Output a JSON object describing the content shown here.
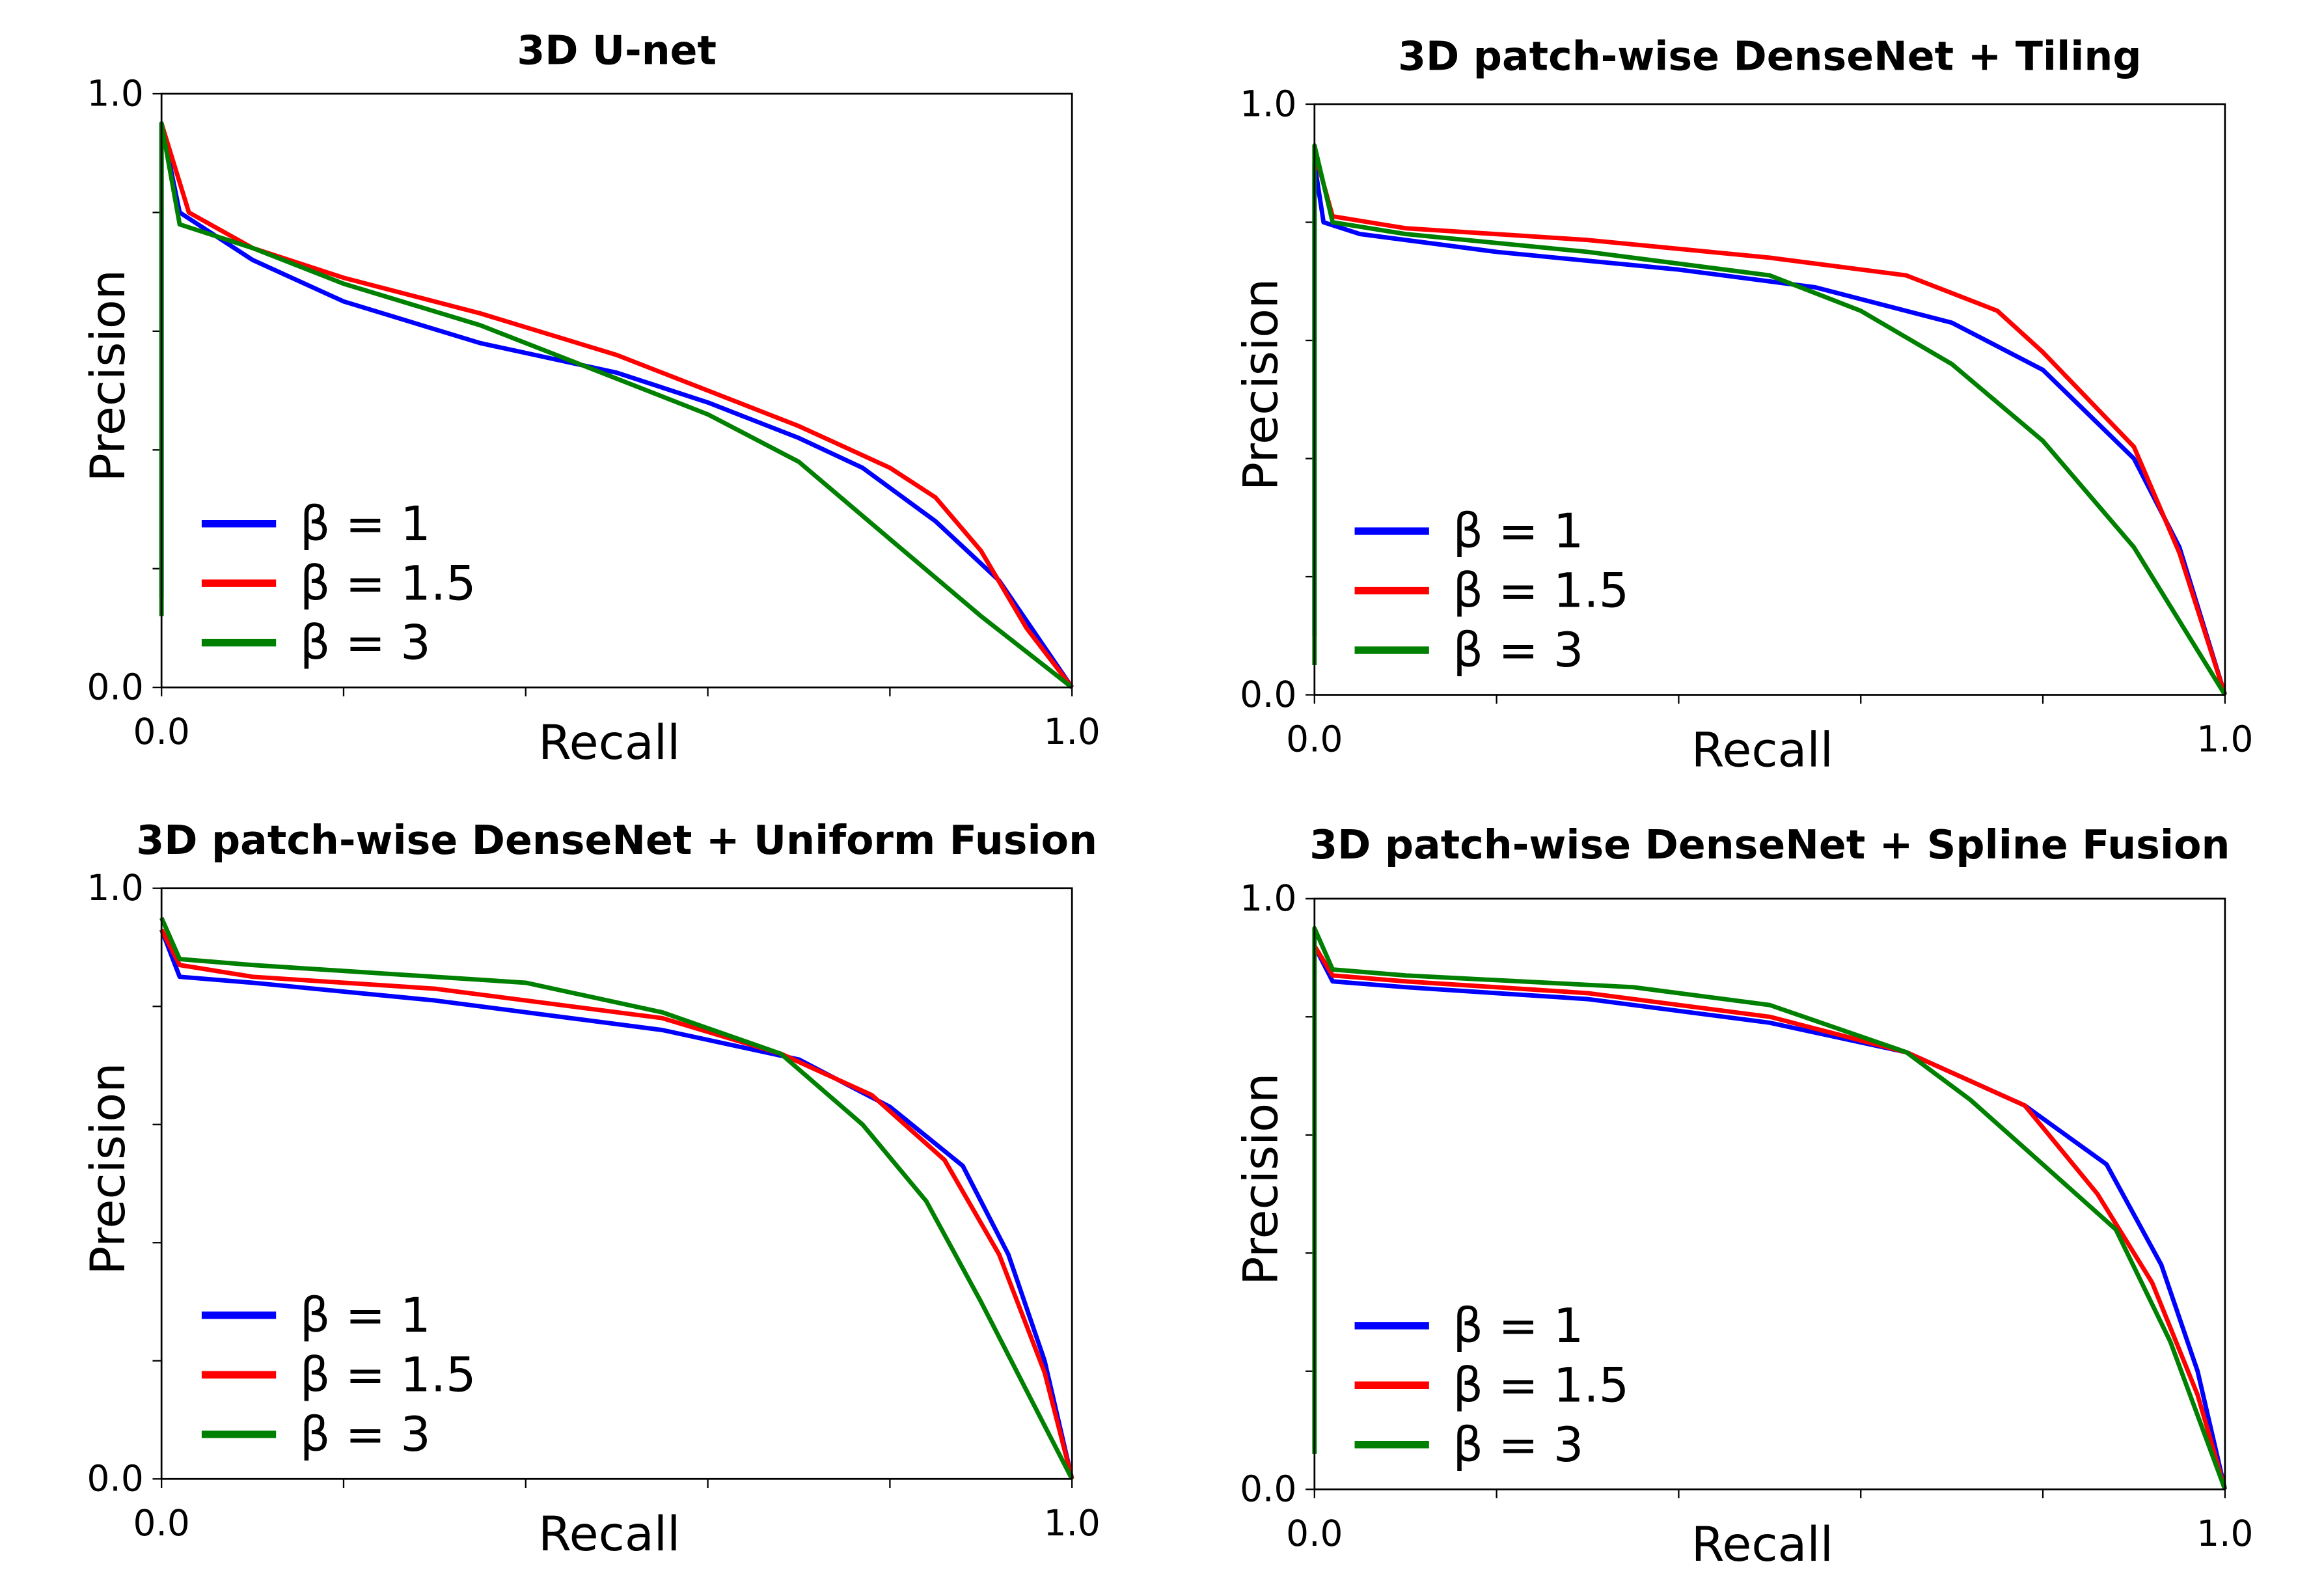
{
  "chart_data": [
    {
      "type": "line",
      "title": "3D U-net",
      "xlabel": "Recall",
      "ylabel": "Precision",
      "xlim": [
        0,
        1
      ],
      "ylim": [
        0,
        1
      ],
      "xtick_labels": [
        "0.0",
        "1.0"
      ],
      "ytick_labels": [
        "0.0",
        "1.0"
      ],
      "legend": "bottom-left",
      "series": [
        {
          "name": "β = 1",
          "color": "#0000ff",
          "points": [
            [
              0,
              0.15
            ],
            [
              0,
              0.95
            ],
            [
              0.02,
              0.8
            ],
            [
              0.1,
              0.72
            ],
            [
              0.2,
              0.65
            ],
            [
              0.35,
              0.58
            ],
            [
              0.5,
              0.53
            ],
            [
              0.6,
              0.48
            ],
            [
              0.7,
              0.42
            ],
            [
              0.77,
              0.37
            ],
            [
              0.85,
              0.28
            ],
            [
              0.92,
              0.18
            ],
            [
              1,
              0
            ]
          ]
        },
        {
          "name": "β = 1.5",
          "color": "#ff0000",
          "points": [
            [
              0,
              0.95
            ],
            [
              0.03,
              0.8
            ],
            [
              0.1,
              0.74
            ],
            [
              0.2,
              0.69
            ],
            [
              0.35,
              0.63
            ],
            [
              0.5,
              0.56
            ],
            [
              0.6,
              0.5
            ],
            [
              0.7,
              0.44
            ],
            [
              0.8,
              0.37
            ],
            [
              0.85,
              0.32
            ],
            [
              0.9,
              0.23
            ],
            [
              0.95,
              0.1
            ],
            [
              1,
              0
            ]
          ]
        },
        {
          "name": "β = 3",
          "color": "#008000",
          "points": [
            [
              0,
              0.12
            ],
            [
              0,
              0.95
            ],
            [
              0.02,
              0.78
            ],
            [
              0.1,
              0.74
            ],
            [
              0.2,
              0.68
            ],
            [
              0.35,
              0.61
            ],
            [
              0.5,
              0.52
            ],
            [
              0.6,
              0.46
            ],
            [
              0.7,
              0.38
            ],
            [
              0.8,
              0.25
            ],
            [
              0.9,
              0.12
            ],
            [
              1,
              0
            ]
          ]
        }
      ]
    },
    {
      "type": "line",
      "title": "3D patch-wise DenseNet + Tiling",
      "xlabel": "Recall",
      "ylabel": "Precision",
      "xlim": [
        0,
        1
      ],
      "ylim": [
        0,
        1
      ],
      "xtick_labels": [
        "0.0",
        "1.0"
      ],
      "ytick_labels": [
        "0.0",
        "1.0"
      ],
      "legend": "bottom-left",
      "series": [
        {
          "name": "β = 1",
          "color": "#0000ff",
          "points": [
            [
              0,
              0.1
            ],
            [
              0,
              0.9
            ],
            [
              0.01,
              0.8
            ],
            [
              0.05,
              0.78
            ],
            [
              0.2,
              0.75
            ],
            [
              0.4,
              0.72
            ],
            [
              0.55,
              0.69
            ],
            [
              0.7,
              0.63
            ],
            [
              0.8,
              0.55
            ],
            [
              0.9,
              0.4
            ],
            [
              0.95,
              0.25
            ],
            [
              1,
              0
            ]
          ]
        },
        {
          "name": "β = 1.5",
          "color": "#ff0000",
          "points": [
            [
              0,
              0.92
            ],
            [
              0.02,
              0.81
            ],
            [
              0.1,
              0.79
            ],
            [
              0.3,
              0.77
            ],
            [
              0.5,
              0.74
            ],
            [
              0.65,
              0.71
            ],
            [
              0.75,
              0.65
            ],
            [
              0.8,
              0.58
            ],
            [
              0.9,
              0.42
            ],
            [
              0.95,
              0.24
            ],
            [
              1,
              0
            ]
          ]
        },
        {
          "name": "β = 3",
          "color": "#008000",
          "points": [
            [
              0,
              0.05
            ],
            [
              0,
              0.93
            ],
            [
              0.02,
              0.8
            ],
            [
              0.1,
              0.78
            ],
            [
              0.3,
              0.75
            ],
            [
              0.5,
              0.71
            ],
            [
              0.6,
              0.65
            ],
            [
              0.7,
              0.56
            ],
            [
              0.8,
              0.43
            ],
            [
              0.9,
              0.25
            ],
            [
              1,
              0
            ]
          ]
        }
      ]
    },
    {
      "type": "line",
      "title": "3D patch-wise DenseNet + Uniform Fusion",
      "xlabel": "Recall",
      "ylabel": "Precision",
      "xlim": [
        0,
        1
      ],
      "ylim": [
        0,
        1
      ],
      "xtick_labels": [
        "0.0",
        "1.0"
      ],
      "ytick_labels": [
        "0.0",
        "1.0"
      ],
      "legend": "bottom-left",
      "series": [
        {
          "name": "β = 1",
          "color": "#0000ff",
          "points": [
            [
              0,
              0.93
            ],
            [
              0.02,
              0.85
            ],
            [
              0.1,
              0.84
            ],
            [
              0.3,
              0.81
            ],
            [
              0.55,
              0.76
            ],
            [
              0.7,
              0.71
            ],
            [
              0.8,
              0.63
            ],
            [
              0.88,
              0.53
            ],
            [
              0.93,
              0.38
            ],
            [
              0.97,
              0.2
            ],
            [
              1,
              0
            ]
          ]
        },
        {
          "name": "β = 1.5",
          "color": "#ff0000",
          "points": [
            [
              0,
              0.93
            ],
            [
              0.02,
              0.87
            ],
            [
              0.1,
              0.85
            ],
            [
              0.3,
              0.83
            ],
            [
              0.55,
              0.78
            ],
            [
              0.68,
              0.72
            ],
            [
              0.78,
              0.65
            ],
            [
              0.86,
              0.54
            ],
            [
              0.92,
              0.38
            ],
            [
              0.97,
              0.18
            ],
            [
              1,
              0
            ]
          ]
        },
        {
          "name": "β = 3",
          "color": "#008000",
          "points": [
            [
              0,
              0.95
            ],
            [
              0.02,
              0.88
            ],
            [
              0.1,
              0.87
            ],
            [
              0.4,
              0.84
            ],
            [
              0.55,
              0.79
            ],
            [
              0.68,
              0.72
            ],
            [
              0.77,
              0.6
            ],
            [
              0.84,
              0.47
            ],
            [
              0.9,
              0.3
            ],
            [
              0.96,
              0.12
            ],
            [
              1,
              0
            ]
          ]
        }
      ]
    },
    {
      "type": "line",
      "title": "3D patch-wise DenseNet + Spline Fusion",
      "xlabel": "Recall",
      "ylabel": "Precision",
      "xlim": [
        0,
        1
      ],
      "ylim": [
        0,
        1
      ],
      "xtick_labels": [
        "0.0",
        "1.0"
      ],
      "ytick_labels": [
        "0.0",
        "1.0"
      ],
      "legend": "bottom-left",
      "series": [
        {
          "name": "β = 1",
          "color": "#0000ff",
          "points": [
            [
              0,
              0.92
            ],
            [
              0.02,
              0.86
            ],
            [
              0.1,
              0.85
            ],
            [
              0.3,
              0.83
            ],
            [
              0.5,
              0.79
            ],
            [
              0.65,
              0.74
            ],
            [
              0.78,
              0.65
            ],
            [
              0.87,
              0.55
            ],
            [
              0.93,
              0.38
            ],
            [
              0.97,
              0.2
            ],
            [
              1,
              0
            ]
          ]
        },
        {
          "name": "β = 1.5",
          "color": "#ff0000",
          "points": [
            [
              0,
              0.92
            ],
            [
              0.02,
              0.87
            ],
            [
              0.1,
              0.86
            ],
            [
              0.3,
              0.84
            ],
            [
              0.5,
              0.8
            ],
            [
              0.65,
              0.74
            ],
            [
              0.78,
              0.65
            ],
            [
              0.86,
              0.5
            ],
            [
              0.92,
              0.35
            ],
            [
              0.97,
              0.16
            ],
            [
              1,
              0
            ]
          ]
        },
        {
          "name": "β = 3",
          "color": "#008000",
          "points": [
            [
              0,
              0.06
            ],
            [
              0,
              0.95
            ],
            [
              0.02,
              0.88
            ],
            [
              0.1,
              0.87
            ],
            [
              0.35,
              0.85
            ],
            [
              0.5,
              0.82
            ],
            [
              0.65,
              0.74
            ],
            [
              0.72,
              0.66
            ],
            [
              0.8,
              0.55
            ],
            [
              0.88,
              0.44
            ],
            [
              0.94,
              0.25
            ],
            [
              1,
              0
            ]
          ]
        }
      ]
    }
  ]
}
